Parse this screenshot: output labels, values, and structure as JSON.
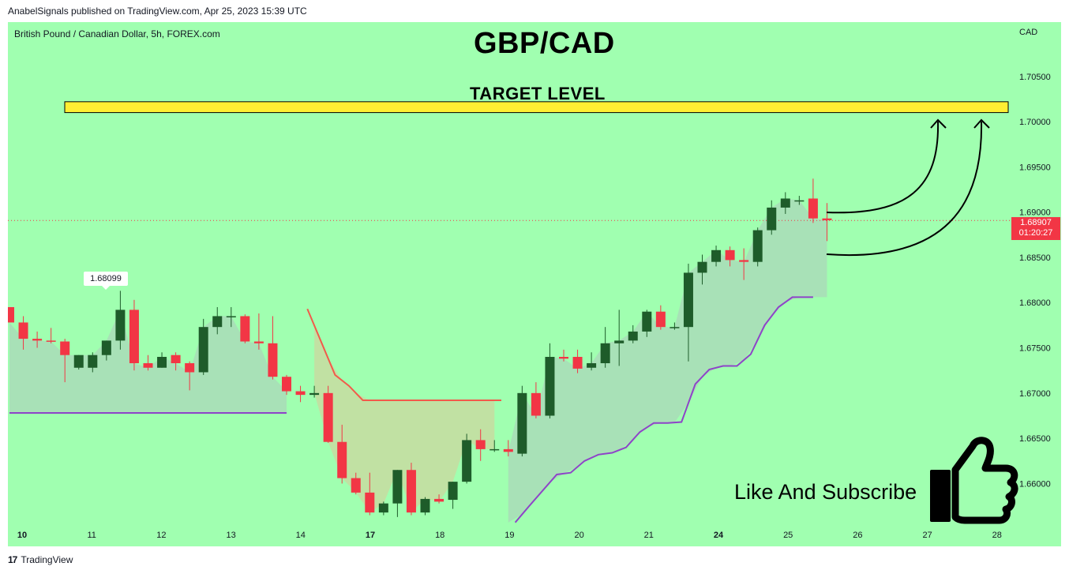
{
  "publisher_line": "AnabelSignals published on TradingView.com, Apr 25, 2023 15:39 UTC",
  "symbol_line": "British Pound / Canadian Dollar, 5h, FOREX.com",
  "title": "GBP/CAD",
  "currency": "CAD",
  "annotations": {
    "target_label": "TARGET LEVEL",
    "target_zone": [
      1.701,
      1.7022
    ],
    "subscribe_text": "Like And Subscribe",
    "peak_label": "1.68099",
    "price_label": "1.68907",
    "countdown_label": "01:20:27"
  },
  "footer": {
    "brand": "TradingView"
  },
  "colors": {
    "background": "#a0ffb0",
    "up_candle": "#1e5c2a",
    "down_candle": "#f23645",
    "target_fill": "#ffee33",
    "indicator_line": "#8e44c8",
    "stop_line": "#f25a4a",
    "cloud_fill": "#a9dcb8"
  },
  "chart_data": {
    "type": "candlestick",
    "ylim": [
      1.6555,
      1.711
    ],
    "y_ticks": [
      "1.70500",
      "1.70000",
      "1.69500",
      "1.69000",
      "1.68500",
      "1.68000",
      "1.67500",
      "1.67000",
      "1.66500",
      "1.66000"
    ],
    "x_ticks": [
      {
        "label": "10",
        "bold": true
      },
      {
        "label": "11",
        "bold": false
      },
      {
        "label": "12",
        "bold": false
      },
      {
        "label": "13",
        "bold": false
      },
      {
        "label": "14",
        "bold": false
      },
      {
        "label": "17",
        "bold": true
      },
      {
        "label": "18",
        "bold": false
      },
      {
        "label": "19",
        "bold": false
      },
      {
        "label": "20",
        "bold": false
      },
      {
        "label": "21",
        "bold": false
      },
      {
        "label": "24",
        "bold": true
      },
      {
        "label": "25",
        "bold": false
      },
      {
        "label": "26",
        "bold": false
      },
      {
        "label": "27",
        "bold": false
      },
      {
        "label": "28",
        "bold": false
      }
    ],
    "last_price": 1.68907,
    "candles": [
      [
        1.6795,
        1.6785,
        1.679,
        1.6778
      ],
      [
        1.6778,
        1.6748,
        1.6785,
        1.676
      ],
      [
        1.676,
        1.675,
        1.6768,
        1.6758
      ],
      [
        1.6758,
        1.6755,
        1.6772,
        1.6757
      ],
      [
        1.6757,
        1.6712,
        1.676,
        1.6742
      ],
      [
        1.6728,
        1.6726,
        1.6742,
        1.6742
      ],
      [
        1.6728,
        1.6723,
        1.6745,
        1.6742
      ],
      [
        1.6742,
        1.6736,
        1.6758,
        1.6758
      ],
      [
        1.6758,
        1.6748,
        1.6813,
        1.6792
      ],
      [
        1.6792,
        1.6725,
        1.6803,
        1.6733
      ],
      [
        1.6733,
        1.6725,
        1.6742,
        1.6728
      ],
      [
        1.6728,
        1.6728,
        1.6745,
        1.674
      ],
      [
        1.6742,
        1.6725,
        1.6745,
        1.6733
      ],
      [
        1.6733,
        1.6703,
        1.6735,
        1.6723
      ],
      [
        1.6723,
        1.672,
        1.6782,
        1.6773
      ],
      [
        1.6773,
        1.6765,
        1.6795,
        1.6785
      ],
      [
        1.6785,
        1.6773,
        1.6795,
        1.6785
      ],
      [
        1.6785,
        1.6755,
        1.6787,
        1.6757
      ],
      [
        1.6757,
        1.6748,
        1.6788,
        1.6755
      ],
      [
        1.6755,
        1.6715,
        1.6785,
        1.6718
      ],
      [
        1.6718,
        1.6698,
        1.672,
        1.6702
      ],
      [
        1.6702,
        1.669,
        1.6708,
        1.6698
      ],
      [
        1.6698,
        1.6695,
        1.6708,
        1.67
      ],
      [
        1.67,
        1.6645,
        1.6708,
        1.6646
      ],
      [
        1.6646,
        1.66,
        1.6665,
        1.6606
      ],
      [
        1.6606,
        1.6588,
        1.6612,
        1.659
      ],
      [
        1.659,
        1.6565,
        1.6612,
        1.6568
      ],
      [
        1.6568,
        1.6565,
        1.658,
        1.6578
      ],
      [
        1.6578,
        1.6563,
        1.6615,
        1.6615
      ],
      [
        1.6615,
        1.6565,
        1.6623,
        1.6568
      ],
      [
        1.6568,
        1.6565,
        1.6585,
        1.6583
      ],
      [
        1.6583,
        1.6578,
        1.6588,
        1.658
      ],
      [
        1.6582,
        1.6572,
        1.6602,
        1.6602
      ],
      [
        1.6602,
        1.66,
        1.6655,
        1.6648
      ],
      [
        1.6648,
        1.6625,
        1.666,
        1.6638
      ],
      [
        1.6638,
        1.6635,
        1.6648,
        1.6638
      ],
      [
        1.6638,
        1.663,
        1.6648,
        1.6635
      ],
      [
        1.6633,
        1.663,
        1.6708,
        1.67
      ],
      [
        1.67,
        1.6672,
        1.6712,
        1.6675
      ],
      [
        1.6675,
        1.6672,
        1.6755,
        1.674
      ],
      [
        1.674,
        1.6735,
        1.6748,
        1.6738
      ],
      [
        1.674,
        1.6722,
        1.6748,
        1.6727
      ],
      [
        1.6728,
        1.6725,
        1.6745,
        1.6733
      ],
      [
        1.6733,
        1.6728,
        1.6773,
        1.6755
      ],
      [
        1.6755,
        1.673,
        1.6792,
        1.6758
      ],
      [
        1.6758,
        1.6755,
        1.6775,
        1.6768
      ],
      [
        1.6768,
        1.6762,
        1.6792,
        1.679
      ],
      [
        1.679,
        1.677,
        1.6797,
        1.6773
      ],
      [
        1.6773,
        1.677,
        1.6778,
        1.6773
      ],
      [
        1.6773,
        1.6735,
        1.6843,
        1.6833
      ],
      [
        1.6833,
        1.682,
        1.6853,
        1.6845
      ],
      [
        1.6845,
        1.684,
        1.6863,
        1.6858
      ],
      [
        1.6858,
        1.684,
        1.6862,
        1.6847
      ],
      [
        1.6847,
        1.6825,
        1.686,
        1.6845
      ],
      [
        1.6845,
        1.684,
        1.6883,
        1.688
      ],
      [
        1.688,
        1.6875,
        1.6913,
        1.6905
      ],
      [
        1.6905,
        1.6898,
        1.6922,
        1.6915
      ],
      [
        1.6913,
        1.6908,
        1.6918,
        1.6913
      ],
      [
        1.6915,
        1.6888,
        1.6937,
        1.6893
      ],
      [
        1.6893,
        1.6868,
        1.691,
        1.6891
      ]
    ],
    "indicator_line": [
      [
        0,
        1.6678
      ],
      [
        20,
        1.6678
      ],
      [
        36.5,
        1.6557
      ],
      [
        37.5,
        1.6575
      ],
      [
        39.5,
        1.661
      ],
      [
        40.5,
        1.6612
      ],
      [
        41.5,
        1.6625
      ],
      [
        42.5,
        1.6632
      ],
      [
        43.5,
        1.6634
      ],
      [
        44.5,
        1.664
      ],
      [
        45.5,
        1.6657
      ],
      [
        46.5,
        1.6667
      ],
      [
        47.5,
        1.6667
      ],
      [
        48.5,
        1.6668
      ],
      [
        49.5,
        1.671
      ],
      [
        50.5,
        1.6726
      ],
      [
        51.5,
        1.673
      ],
      [
        52.5,
        1.673
      ],
      [
        53.5,
        1.6743
      ],
      [
        54.5,
        1.6775
      ],
      [
        55.5,
        1.6795
      ],
      [
        56.5,
        1.6806
      ],
      [
        58,
        1.6806
      ]
    ],
    "stop_line": [
      [
        21.5,
        1.6793
      ],
      [
        23.5,
        1.672
      ],
      [
        24.5,
        1.6708
      ],
      [
        25.5,
        1.6692
      ],
      [
        35.5,
        1.6692
      ]
    ]
  }
}
